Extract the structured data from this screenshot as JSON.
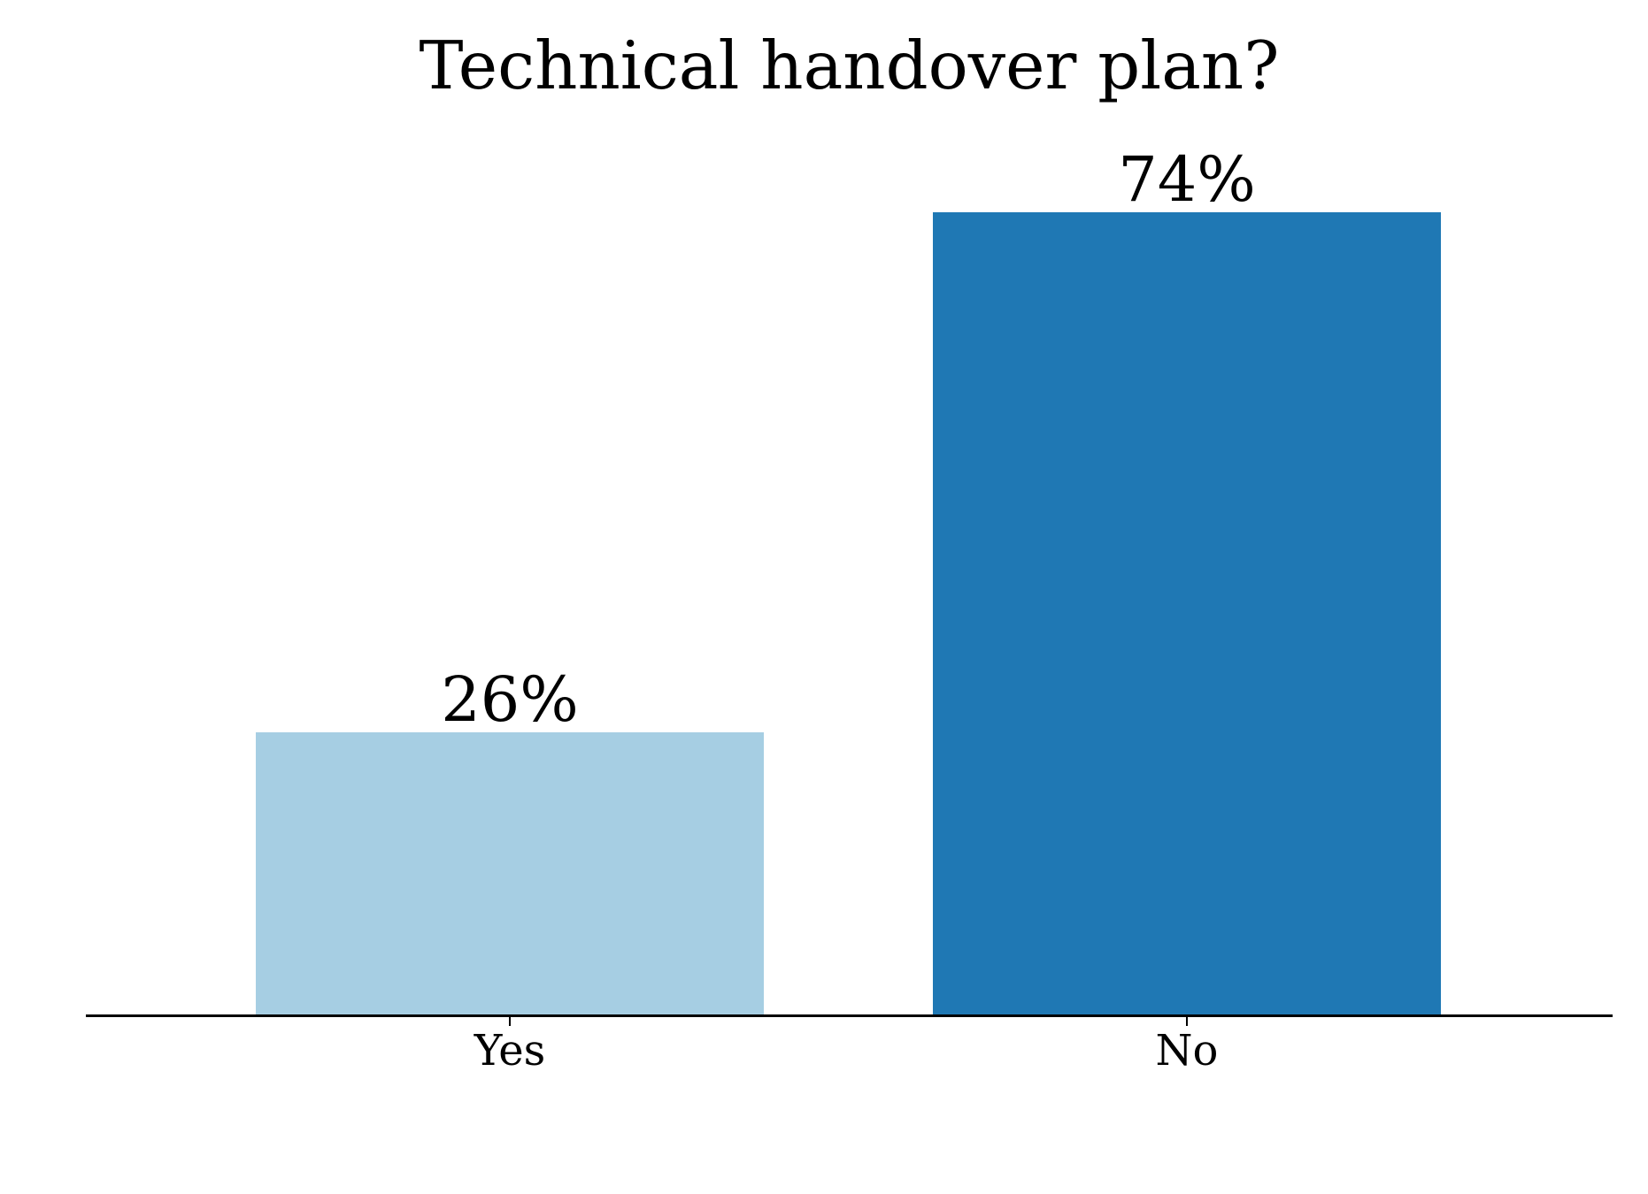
{
  "chart_data": {
    "type": "bar",
    "title": "Technical handover plan?",
    "categories": [
      "Yes",
      "No"
    ],
    "values": [
      26,
      74
    ],
    "unit": "%",
    "data_labels": [
      "26%",
      "74%"
    ],
    "bar_colors": [
      "#A6CEE3",
      "#1F78B4"
    ],
    "axis_color": "#000000",
    "text_color": "#000000",
    "xlabel": "",
    "ylabel": "",
    "ylim": [
      0,
      80
    ],
    "grid": false,
    "legend": false,
    "y_axis_visible": false,
    "data_labels_position": "above-bars"
  }
}
